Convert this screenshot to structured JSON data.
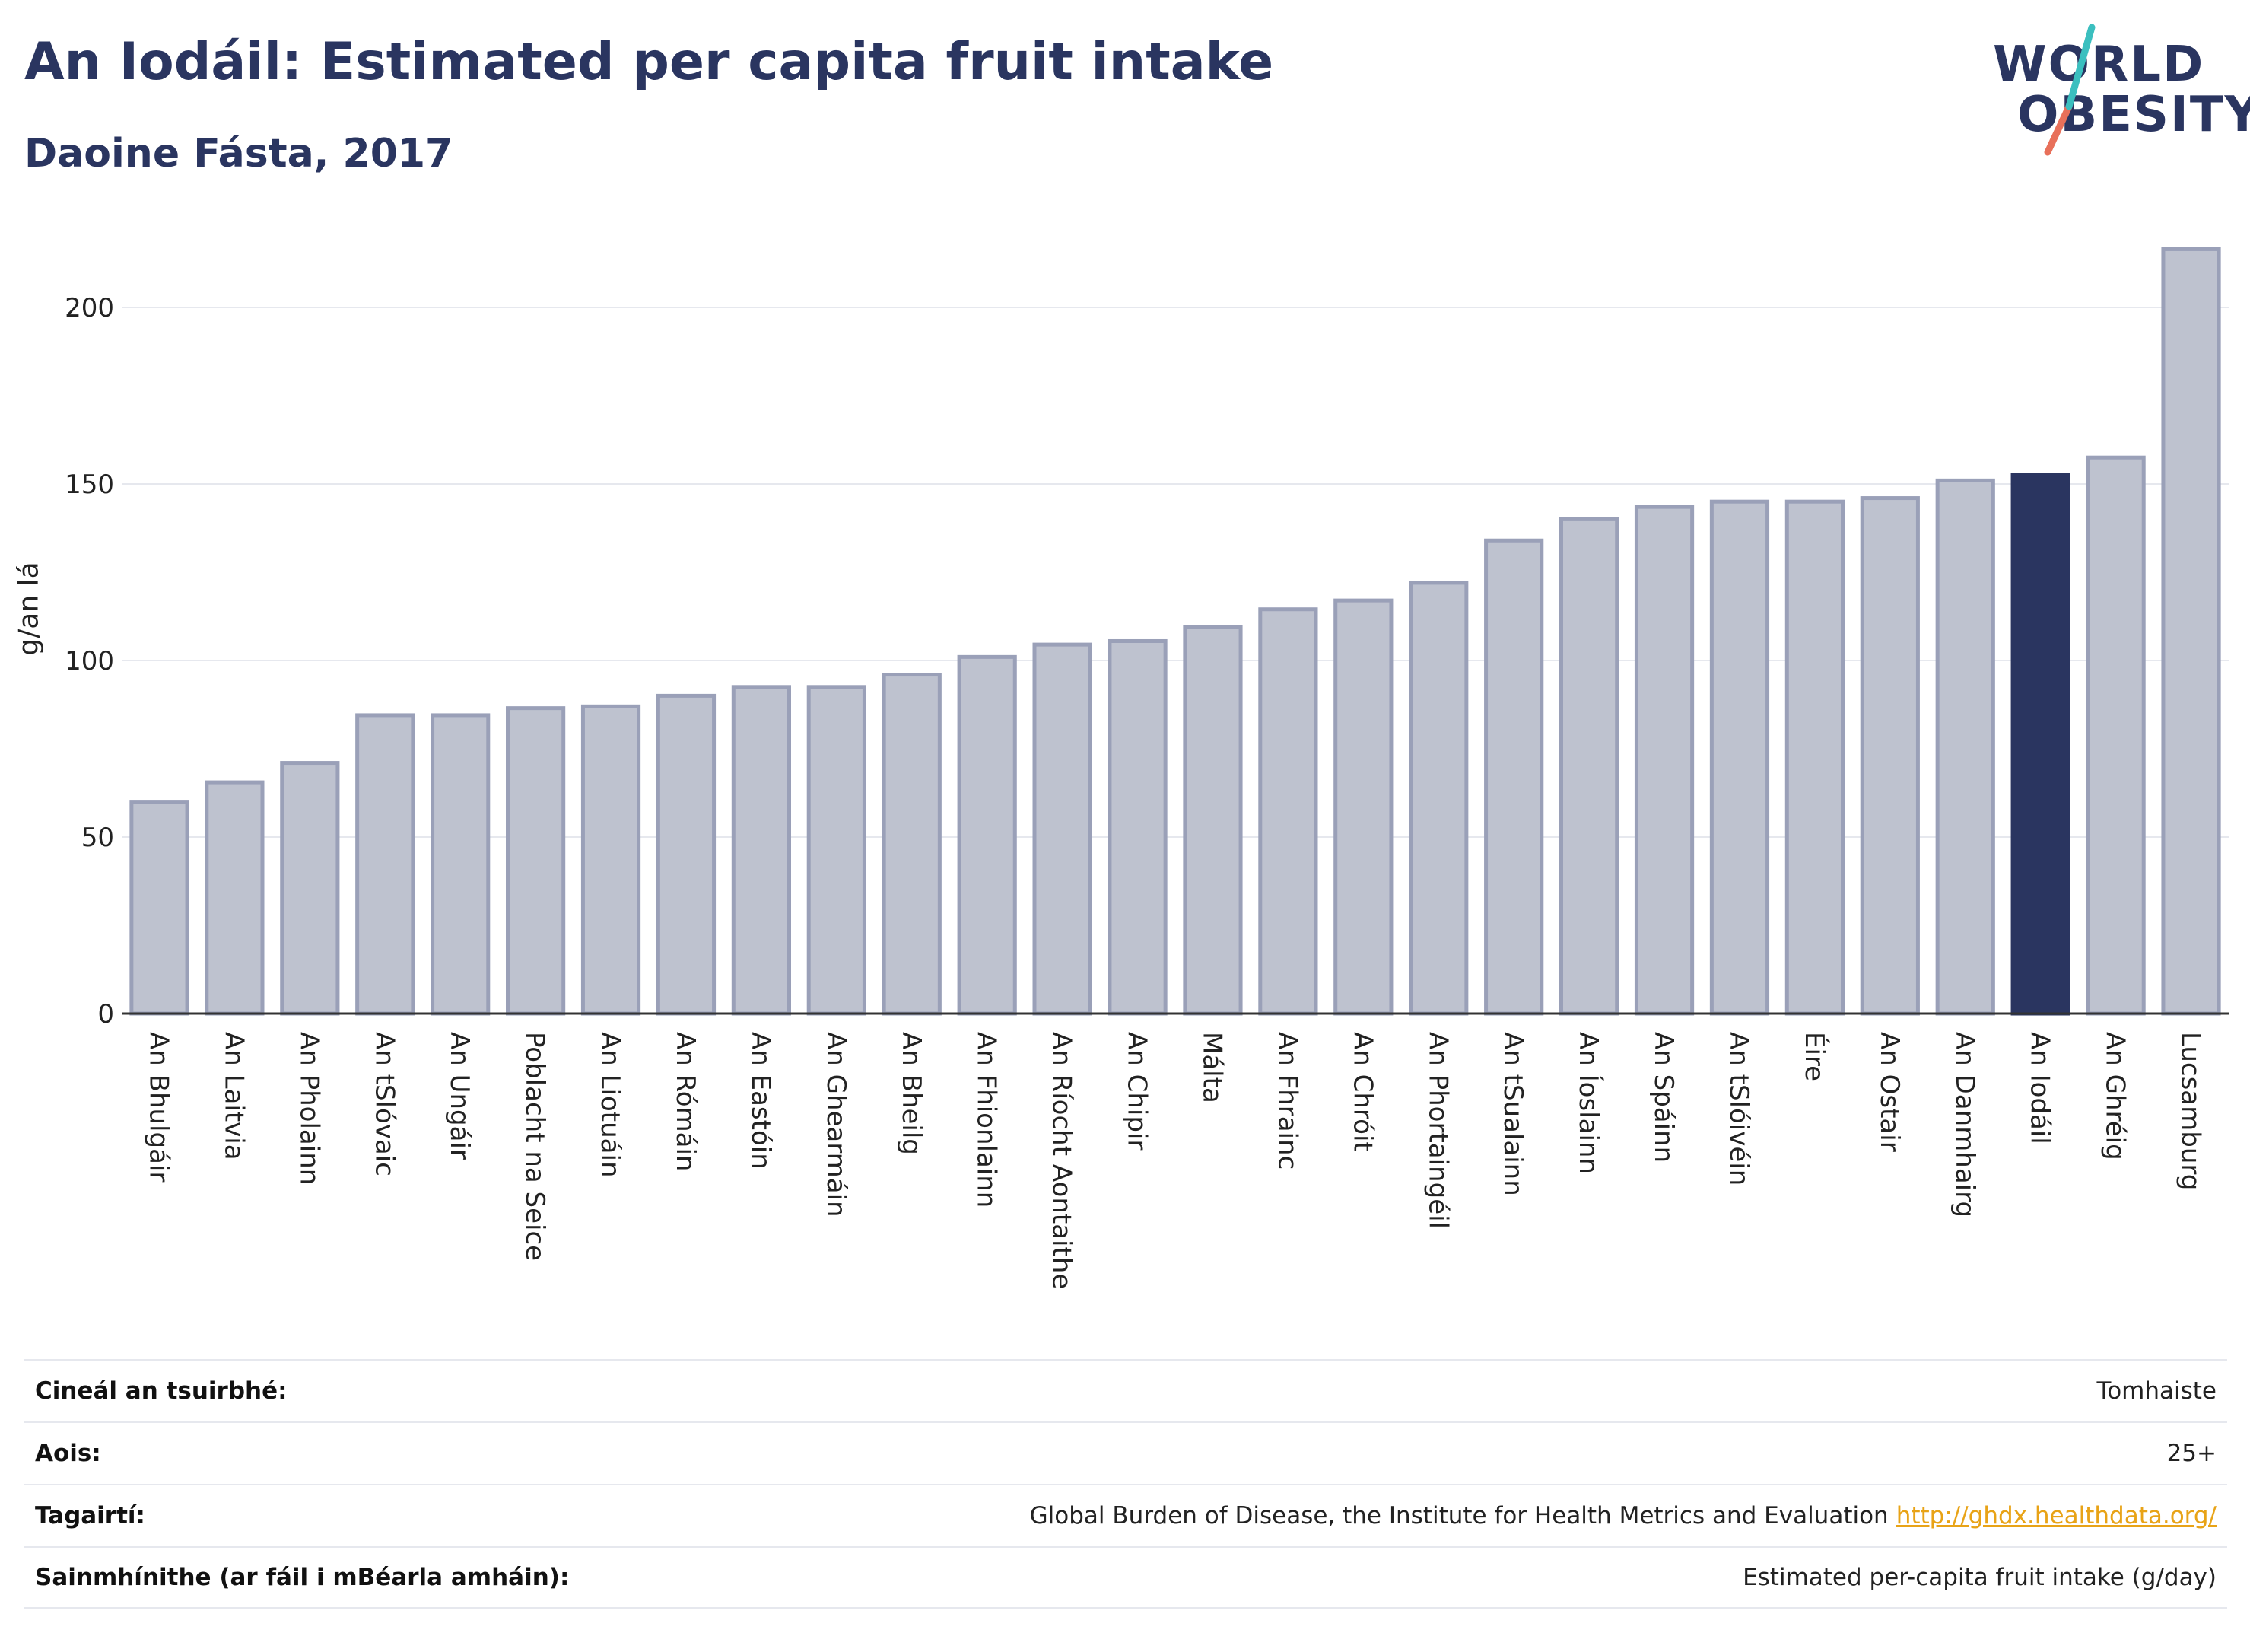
{
  "header": {
    "title": "An Iodáil: Estimated per capita fruit intake",
    "subtitle": "Daoine Fásta, 2017"
  },
  "logo": {
    "line1": "WORLD",
    "line2": "OBESITY",
    "colors": {
      "text": "#2a3560",
      "slash_top": "#3bbfbf",
      "slash_bottom": "#e8705a"
    }
  },
  "colors": {
    "bar_default": "#bec2cf",
    "bar_default_stroke": "#9aa0b8",
    "bar_highlight": "#2a3560",
    "grid": "#e6e8ee",
    "axis": "#333333"
  },
  "chart_data": {
    "type": "bar",
    "title": "An Iodáil: Estimated per capita fruit intake",
    "subtitle": "Daoine Fásta, 2017",
    "xlabel": "",
    "ylabel": "g/an lá",
    "ylim": [
      0,
      220
    ],
    "yticks": [
      0,
      50,
      100,
      150,
      200
    ],
    "grid": true,
    "highlight": "An Iodáil",
    "categories": [
      "An Bhulgáir",
      "An Laitvia",
      "An Pholainn",
      "An tSlóvaic",
      "An Ungáir",
      "Poblacht na Seice",
      "An Liotuáin",
      "An Rómáin",
      "An Eastóin",
      "An Ghearmáin",
      "An Bheilg",
      "An Fhionlainn",
      "An Ríocht Aontaithe",
      "An Chipir",
      "Málta",
      "An Fhrainc",
      "An Chróit",
      "An Phortaingéil",
      "An tSualainn",
      "An Íoslainn",
      "An Spáinn",
      "An tSlóivéin",
      "Éire",
      "An Ostair",
      "An Danmhairg",
      "An Iodáil",
      "An Ghréig",
      "Lucsamburg"
    ],
    "values": [
      60,
      65.5,
      71,
      84.5,
      84.5,
      86.5,
      87,
      90,
      92.5,
      92.5,
      96,
      101,
      104.5,
      105.5,
      109.5,
      114.5,
      117,
      122,
      134,
      140,
      143.5,
      145,
      145,
      146,
      151,
      152.5,
      157.5,
      216.5
    ]
  },
  "info": {
    "rows": [
      {
        "key": "Cineál an tsuirbhé:",
        "value": "Tomhaiste"
      },
      {
        "key": "Aois:",
        "value": "25+"
      },
      {
        "key": "Tagairtí:",
        "value": "Global Burden of Disease, the Institute for Health Metrics and Evaluation",
        "link": "http://ghdx.healthdata.org/"
      },
      {
        "key": "Sainmhínithe (ar fáil i mBéarla amháin):",
        "value": "Estimated per-capita fruit intake (g/day)"
      }
    ]
  }
}
